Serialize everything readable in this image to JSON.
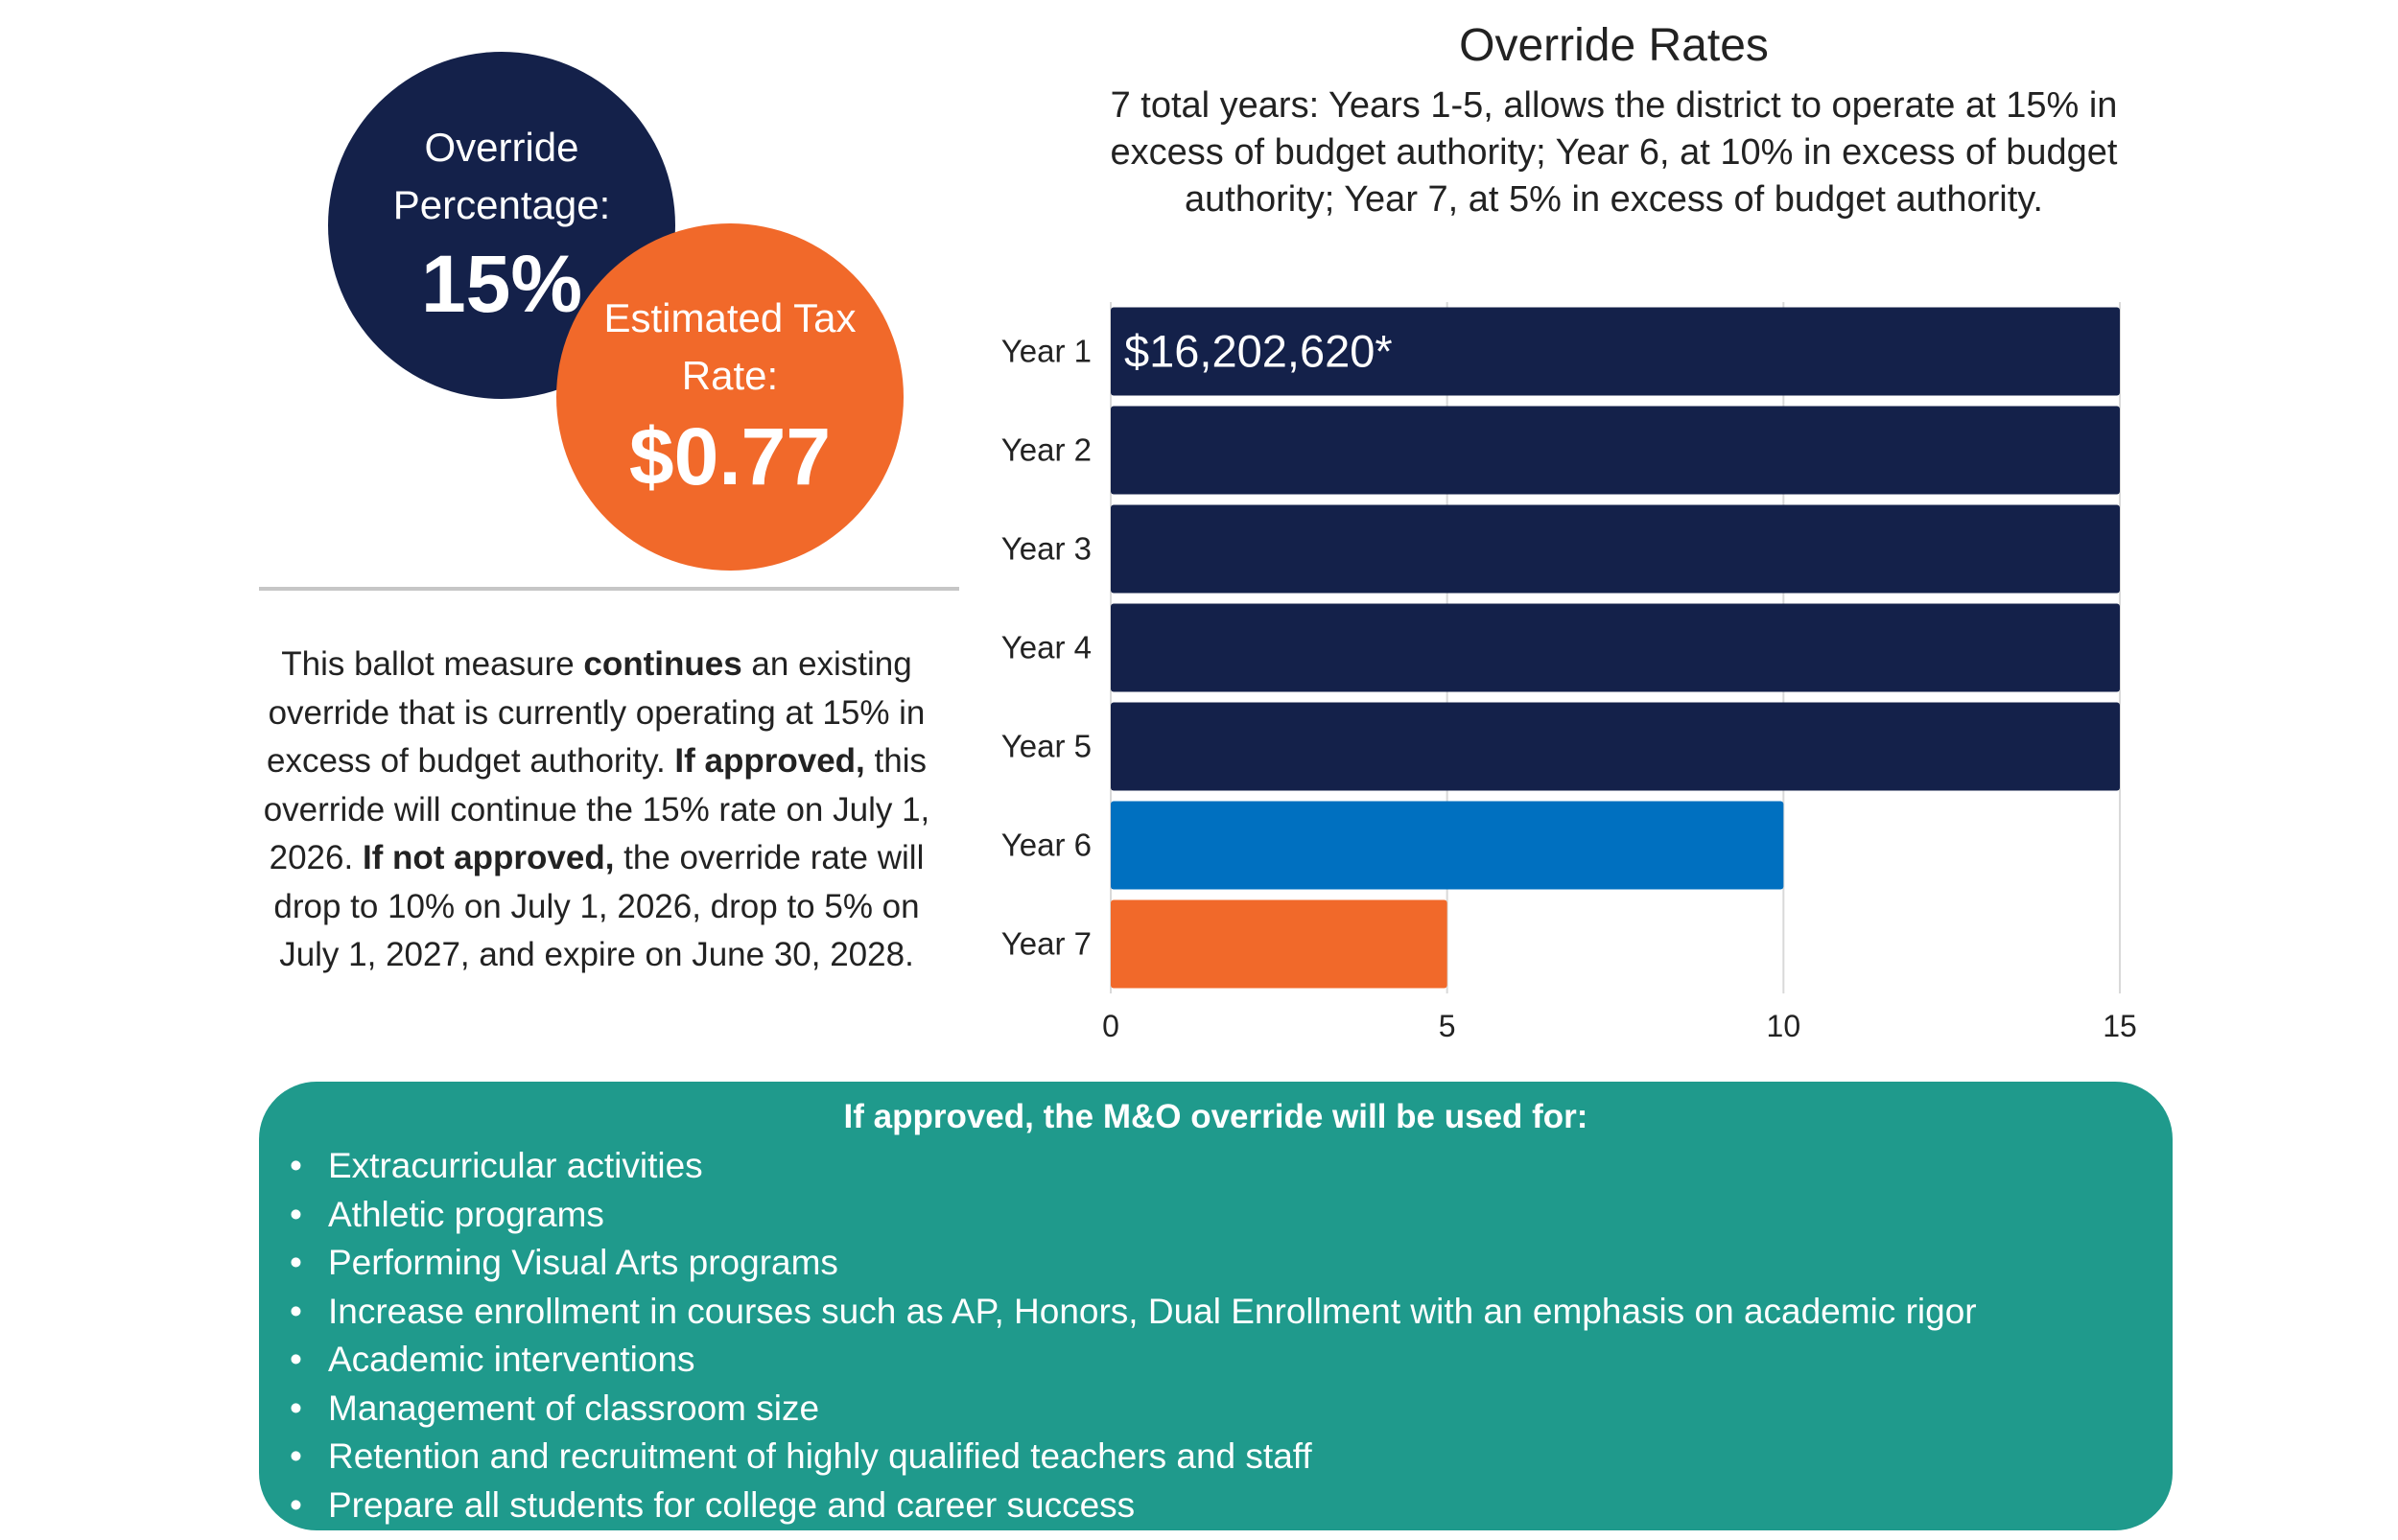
{
  "circles": {
    "override": {
      "label_line1": "Override",
      "label_line2": "Percentage:",
      "value": "15%",
      "color": "#14214a"
    },
    "tax": {
      "label_line1": "Estimated Tax",
      "label_line2": "Rate:",
      "value": "$0.77",
      "color": "#f1692a"
    }
  },
  "description": {
    "p1": "This ballot measure ",
    "b1": "continues",
    "p2": " an existing override that is currently operating at 15% in excess of budget authority. ",
    "b2": "If approved,",
    "p3": " this override will continue the 15% rate on July 1, 2026. ",
    "b3": "If not approved,",
    "p4": " the override rate will drop to 10% on July 1, 2026, drop to 5% on July 1, 2027, and expire on June 30, 2028."
  },
  "chart_data": {
    "type": "bar",
    "orientation": "horizontal",
    "title": "Override Rates",
    "subtitle": "7 total years: Years 1-5, allows the district to operate at 15% in excess of budget authority; Year 6, at 10% in excess of budget authority; Year 7, at 5% in excess of budget authority.",
    "categories": [
      "Year 1",
      "Year 2",
      "Year 3",
      "Year 4",
      "Year 5",
      "Year 6",
      "Year 7"
    ],
    "values": [
      15,
      15,
      15,
      15,
      15,
      10,
      5
    ],
    "colors": [
      "#14214a",
      "#14214a",
      "#14214a",
      "#14214a",
      "#14214a",
      "#0070c0",
      "#f1692a"
    ],
    "data_labels": [
      "$16,202,620*",
      "",
      "",
      "",
      "",
      "",
      ""
    ],
    "xlim": [
      0,
      15
    ],
    "xticks": [
      0,
      5,
      10,
      15
    ],
    "grid": true
  },
  "panel": {
    "heading": "If approved, the M&O override will be used for:",
    "items": [
      "Extracurricular activities",
      "Athletic programs",
      "Performing Visual Arts programs",
      "Increase enrollment in courses such as AP, Honors, Dual Enrollment with an emphasis on academic rigor",
      "Academic interventions",
      "Management of classroom size",
      "Retention and recruitment of highly qualified teachers and staff",
      "Prepare all students for college and career success"
    ],
    "color": "#1f9a8c"
  }
}
